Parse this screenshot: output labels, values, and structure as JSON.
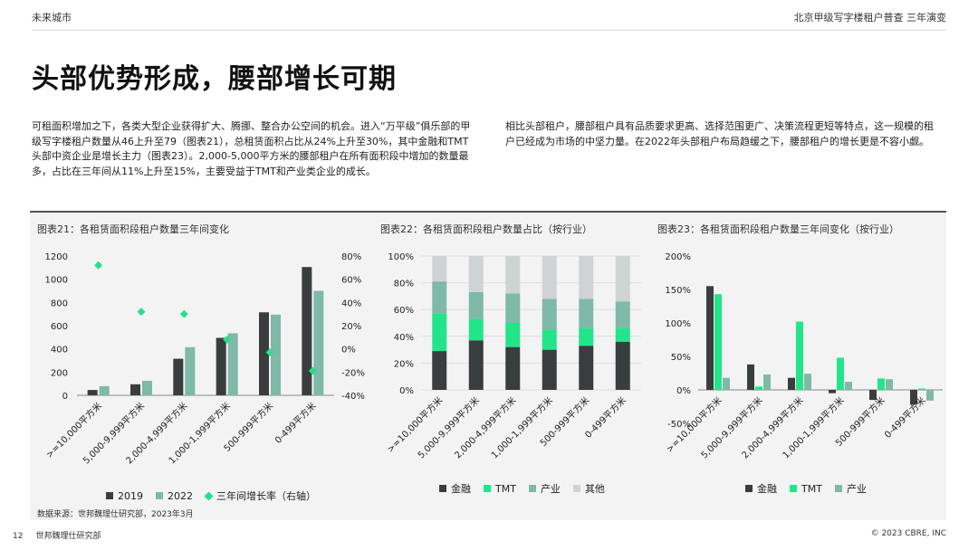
{
  "header": {
    "left": "未来城市",
    "right": "北京甲级写字楼租户普查 三年演变"
  },
  "title": "头部优势形成，腰部增长可期",
  "paragraphs": [
    "可租面积增加之下，各类大型企业获得扩大、腾挪、整合办公空间的机会。进入“万平级”俱乐部的甲级写字楼租户数量从46上升至79（图表21），总租赁面积占比从24%上升至30%，其中金融和TMT头部中资企业是增长主力（图表23）。2,000-5,000平方米的腰部租户在所有面积段中增加的数量最多，占比在三年间从11%上升至15%，主要受益于TMT和产业类企业的成长。",
    "相比头部租户，腰部租户具有品质要求更高、选择范围更广、决策流程更短等特点，这一规模的租户已经成为市场的中坚力量。在2022年头部租户布局趋缓之下，腰部租户的增长更是不容小觑。"
  ],
  "source": "数据来源：世邦魏理仕研究部，2023年3月",
  "footer": {
    "page": "12",
    "dept": "世邦魏理仕研究部",
    "copyright": "© 2023 CBRE, INC"
  },
  "colors": {
    "dark": "#3a3d3e",
    "teal": "#7fb9a8",
    "green": "#22e58a",
    "gray": "#cfd3d4",
    "diamond": "#27e08b"
  },
  "chart_data": [
    {
      "type": "bar",
      "title": "图表21：各租赁面积段租户数量三年间变化",
      "categories": [
        ">=10,000平方米",
        "5,000-9,999平方米",
        "2,000-4,999平方米",
        "1,000-1,999平方米",
        "500-999平方米",
        "0-499平方米"
      ],
      "series": [
        {
          "name": "2019",
          "values": [
            46,
            95,
            315,
            495,
            715,
            1105
          ]
        },
        {
          "name": "2022",
          "values": [
            79,
            125,
            415,
            535,
            695,
            900
          ]
        },
        {
          "name": "三年间增长率（右轴）",
          "axis": "right",
          "values": [
            0.72,
            0.32,
            0.3,
            0.08,
            -0.03,
            -0.19
          ]
        }
      ],
      "ylim": [
        0,
        1200
      ],
      "yticks": [
        "1200",
        "1000",
        "800",
        "600",
        "400",
        "200",
        "0"
      ],
      "y2lim": [
        -0.4,
        0.8
      ],
      "y2ticks": [
        "80%",
        "60%",
        "40%",
        "20%",
        "0%",
        "-20%",
        "-40%"
      ],
      "grid": false
    },
    {
      "type": "bar",
      "stacked": true,
      "title": "图表22：各租赁面积段租户数量占比（按行业）",
      "categories": [
        ">=10,000平方米",
        "5,000-9,999平方米",
        "2,000-4,999平方米",
        "1,000-1,999平方米",
        "500-999平方米",
        "0-499平方米"
      ],
      "series": [
        {
          "name": "金融",
          "values": [
            0.29,
            0.37,
            0.32,
            0.3,
            0.33,
            0.36
          ]
        },
        {
          "name": "TMT",
          "values": [
            0.28,
            0.16,
            0.18,
            0.15,
            0.13,
            0.1
          ]
        },
        {
          "name": "产业",
          "values": [
            0.24,
            0.2,
            0.22,
            0.23,
            0.22,
            0.2
          ]
        },
        {
          "name": "其他",
          "values": [
            0.19,
            0.27,
            0.28,
            0.32,
            0.32,
            0.34
          ]
        }
      ],
      "ylim": [
        0,
        1
      ],
      "yticks": [
        "100%",
        "80%",
        "60%",
        "40%",
        "20%",
        "0%"
      ],
      "grid": true
    },
    {
      "type": "bar",
      "title": "图表23：各租赁面积段租户数量三年间变化（按行业）",
      "categories": [
        ">=10,000平方米",
        "5,000-9,999平方米",
        "2,000-4,999平方米",
        "1,000-1,999平方米",
        "500-999平方米",
        "0-499平方米"
      ],
      "series": [
        {
          "name": "金融",
          "values": [
            1.55,
            0.38,
            0.18,
            -0.05,
            -0.15,
            -0.22
          ]
        },
        {
          "name": "TMT",
          "values": [
            1.43,
            0.05,
            1.02,
            0.48,
            0.17,
            0.02
          ]
        },
        {
          "name": "产业",
          "values": [
            0.18,
            0.23,
            0.24,
            0.12,
            0.16,
            -0.16
          ]
        }
      ],
      "ylim": [
        -0.5,
        2.0
      ],
      "yticks": [
        "200%",
        "150%",
        "100%",
        "50%",
        "0%",
        "-50%"
      ],
      "grid": false
    }
  ]
}
